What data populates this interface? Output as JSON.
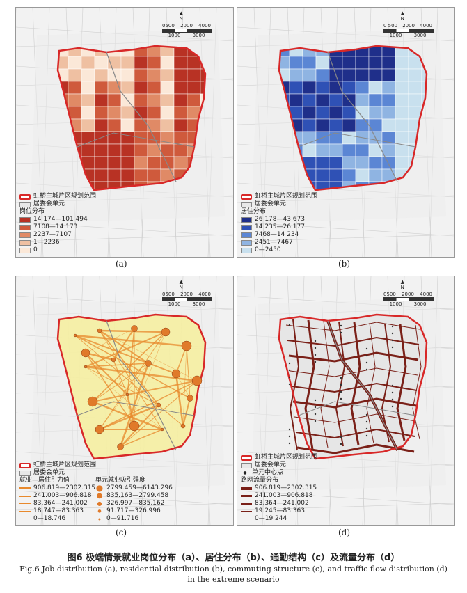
{
  "panels": {
    "a": {
      "label": "(a)",
      "legend": {
        "boundary": "虹桥主城片区规划范围",
        "unit": "居委会单元",
        "title": "岗位分布",
        "classes": [
          {
            "label": "14 174—101 494",
            "color": "#b83224"
          },
          {
            "label": "7108—14 173",
            "color": "#cf5a3c"
          },
          {
            "label": "2237—7107",
            "color": "#e08a66"
          },
          {
            "label": "1—2236",
            "color": "#efc0a2"
          },
          {
            "label": "0",
            "color": "#fbe8d8"
          }
        ]
      }
    },
    "b": {
      "label": "(b)",
      "legend": {
        "boundary": "虹桥主城片区规划范围",
        "unit": "居委会单元",
        "title": "居住分布",
        "classes": [
          {
            "label": "26 178—43 673",
            "color": "#1f2f8a"
          },
          {
            "label": "14 235—26 177",
            "color": "#2f51b5"
          },
          {
            "label": "7468—14 234",
            "color": "#5b86d4"
          },
          {
            "label": "2451—7467",
            "color": "#8fb4e2"
          },
          {
            "label": "0—2450",
            "color": "#c8e0ee"
          }
        ]
      }
    },
    "c": {
      "label": "(c)",
      "legend": {
        "boundary": "虹桥主城片区规划范围",
        "unit": "居委会单元",
        "flow_title": "就业—居住引力值",
        "flows": [
          "906.819—2302.315",
          "241.003—906.818",
          "83.364—241.002",
          "18.747—83.363",
          "0—18.746"
        ],
        "attract_title": "单元就业吸引强度",
        "attract": [
          "2799.459—6143.296",
          "835.163—2799.458",
          "326.997—835.162",
          "91.717—326.996",
          "0—91.716"
        ]
      }
    },
    "d": {
      "label": "(d)",
      "legend": {
        "boundary": "虹桥主城片区规划范围",
        "unit": "居委会单元",
        "centroid": "单元中心点",
        "title": "路网流量分布",
        "classes": [
          "906.819—2302.315",
          "241.003—906.818",
          "83.364—241.002",
          "19.245—83.363",
          "0—19.244"
        ]
      }
    }
  },
  "scale_labels": [
    "0500",
    "2000",
    "4000"
  ],
  "scale_labels_b": [
    "0 500",
    "2000",
    "4000"
  ],
  "scale_lower": [
    "1000",
    "3000"
  ],
  "north": "N",
  "caption": {
    "cn": "图6  极端情景就业岗位分布（a）、居住分布（b）、通勤结构（c）及流量分布（d）",
    "en1": "Fig.6   Job distribution (a), residential distribution (b), commuting structure (c), and traffic flow distribution (d)",
    "en2": "in the extreme scenario"
  },
  "colors": {
    "boundary": "#d82828",
    "flow": "#e8892c",
    "road": "#7a2018",
    "attract": "#e07a2a"
  }
}
